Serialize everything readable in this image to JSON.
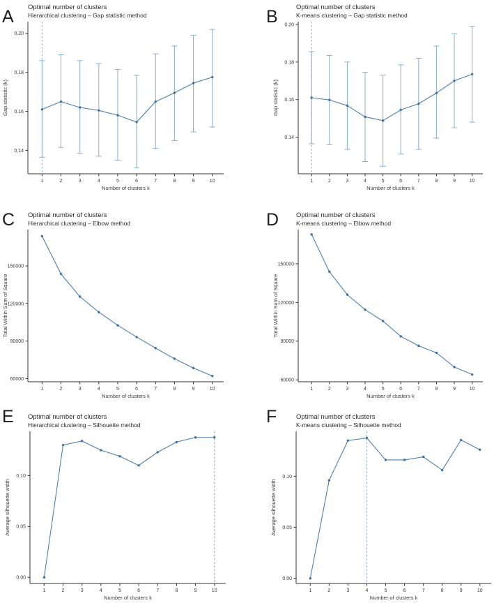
{
  "figure": {
    "background": "#ffffff",
    "accent": "#4c7fae",
    "point_color": "#40719f",
    "errorbar_color": "#86aed2",
    "dashed_line_color": "#85abce",
    "axis_color": "#333333",
    "text_color": "#3a3a3a"
  },
  "chart_data": [
    {
      "panel_label": "A",
      "type": "line",
      "title": "Optimal number of clusters",
      "subtitle": "Hierarchical clustering – Gap statistic method",
      "xlabel": "Number of clusters k",
      "ylabel": "Gap statistic (k)",
      "x": [
        1,
        2,
        3,
        4,
        5,
        6,
        7,
        8,
        9,
        10
      ],
      "series": [
        {
          "name": "gap statistic",
          "values": [
            0.161,
            0.165,
            0.162,
            0.1605,
            0.158,
            0.1545,
            0.165,
            0.1695,
            0.1745,
            0.1775
          ],
          "lower": [
            0.1365,
            0.1415,
            0.1385,
            0.137,
            0.135,
            0.131,
            0.141,
            0.145,
            0.1495,
            0.152
          ],
          "upper": [
            0.186,
            0.189,
            0.186,
            0.1845,
            0.1815,
            0.1785,
            0.1895,
            0.1935,
            0.199,
            0.202
          ]
        }
      ],
      "yticks": [
        0.14,
        0.16,
        0.18,
        0.2
      ],
      "ytick_labels": [
        "0.14",
        "0.16",
        "0.18",
        "0.20"
      ],
      "ylim": [
        0.128,
        0.206
      ],
      "xlim": [
        0.25,
        10.6
      ],
      "vline": 1,
      "grid": false,
      "legend": "none"
    },
    {
      "panel_label": "B",
      "type": "line",
      "title": "Optimal number of clusters",
      "subtitle": "K-means clustering – Gap statistic method",
      "xlabel": "Number of clusters k",
      "ylabel": "Gap statistic (k)",
      "x": [
        1,
        2,
        3,
        4,
        5,
        6,
        7,
        8,
        9,
        10
      ],
      "series": [
        {
          "name": "gap statistic",
          "values": [
            0.161,
            0.1598,
            0.1568,
            0.1508,
            0.1488,
            0.1545,
            0.1578,
            0.1635,
            0.17,
            0.1735
          ],
          "lower": [
            0.1365,
            0.136,
            0.1335,
            0.127,
            0.1245,
            0.131,
            0.1335,
            0.1395,
            0.145,
            0.148
          ],
          "upper": [
            0.1855,
            0.1835,
            0.18,
            0.1745,
            0.173,
            0.1785,
            0.182,
            0.1885,
            0.195,
            0.199
          ]
        }
      ],
      "yticks": [
        0.14,
        0.16,
        0.18,
        0.2
      ],
      "ytick_labels": [
        "0.14",
        "0.16",
        "0.18",
        "0.20"
      ],
      "ylim": [
        0.1205,
        0.2015
      ],
      "xlim": [
        0.25,
        10.6
      ],
      "vline": 1,
      "grid": false,
      "legend": "none"
    },
    {
      "panel_label": "C",
      "type": "line",
      "title": "Optimal number of clusters",
      "subtitle": "Hierarchical clustering – Elbow method",
      "xlabel": "Number of clusters k",
      "ylabel": "Total Within Sum of Square",
      "x": [
        1,
        2,
        3,
        4,
        5,
        6,
        7,
        8,
        9,
        10
      ],
      "series": [
        {
          "name": "total within sum of square",
          "values": [
            173800,
            143600,
            125500,
            113100,
            102600,
            93200,
            84400,
            75900,
            68500,
            62100
          ]
        }
      ],
      "yticks": [
        60000,
        90000,
        120000,
        150000
      ],
      "ytick_labels": [
        "60000",
        "90000",
        "120000",
        "150000"
      ],
      "ylim": [
        57500,
        179000
      ],
      "xlim": [
        0.25,
        10.6
      ],
      "vline": null,
      "grid": false,
      "legend": "none"
    },
    {
      "panel_label": "D",
      "type": "line",
      "title": "Optimal number of clusters",
      "subtitle": "K-means clustering – Elbow method",
      "xlabel": "Number of clusters k",
      "ylabel": "Total Within Sum of Square",
      "x": [
        1,
        2,
        3,
        4,
        5,
        6,
        7,
        8,
        9,
        10
      ],
      "series": [
        {
          "name": "total within sum of square",
          "values": [
            172800,
            143800,
            126100,
            114400,
            105600,
            93700,
            86400,
            81000,
            69900,
            64100
          ]
        }
      ],
      "yticks": [
        60000,
        90000,
        120000,
        150000
      ],
      "ytick_labels": [
        "60000",
        "90000",
        "120000",
        "150000"
      ],
      "ylim": [
        58500,
        176500
      ],
      "xlim": [
        0.25,
        10.6
      ],
      "vline": null,
      "grid": false,
      "legend": "none"
    },
    {
      "panel_label": "E",
      "type": "line",
      "title": "Optimal number of clusters",
      "subtitle": "Hierarchical clustering – Silhouette method",
      "xlabel": "Number of clusters k",
      "ylabel": "Average silhouette width",
      "x": [
        1,
        2,
        3,
        4,
        5,
        6,
        7,
        8,
        9,
        10
      ],
      "series": [
        {
          "name": "average silhouette width",
          "values": [
            0.0,
            0.13,
            0.134,
            0.125,
            0.119,
            0.11,
            0.123,
            0.133,
            0.1375,
            0.1375
          ]
        }
      ],
      "yticks": [
        0.0,
        0.05,
        0.1
      ],
      "ytick_labels": [
        "0.00",
        "0.05",
        "0.10"
      ],
      "ylim": [
        -0.006,
        0.1435
      ],
      "xlim": [
        0.25,
        10.6
      ],
      "vline": 10,
      "grid": false,
      "legend": "none"
    },
    {
      "panel_label": "F",
      "type": "line",
      "title": "Optimal number of clusters",
      "subtitle": "K-means clustering – Silhouette method",
      "xlabel": "Number of clusters k",
      "ylabel": "Average silhouette width",
      "x": [
        1,
        2,
        3,
        4,
        5,
        6,
        7,
        8,
        9,
        10
      ],
      "series": [
        {
          "name": "average silhouette width",
          "values": [
            0.0,
            0.096,
            0.135,
            0.1375,
            0.116,
            0.116,
            0.119,
            0.106,
            0.1355,
            0.126
          ]
        }
      ],
      "yticks": [
        0.0,
        0.05,
        0.1
      ],
      "ytick_labels": [
        "0.00",
        "0.05",
        "0.10"
      ],
      "ylim": [
        -0.005,
        0.144
      ],
      "xlim": [
        0.25,
        10.6
      ],
      "vline": 4,
      "grid": false,
      "legend": "none"
    }
  ]
}
